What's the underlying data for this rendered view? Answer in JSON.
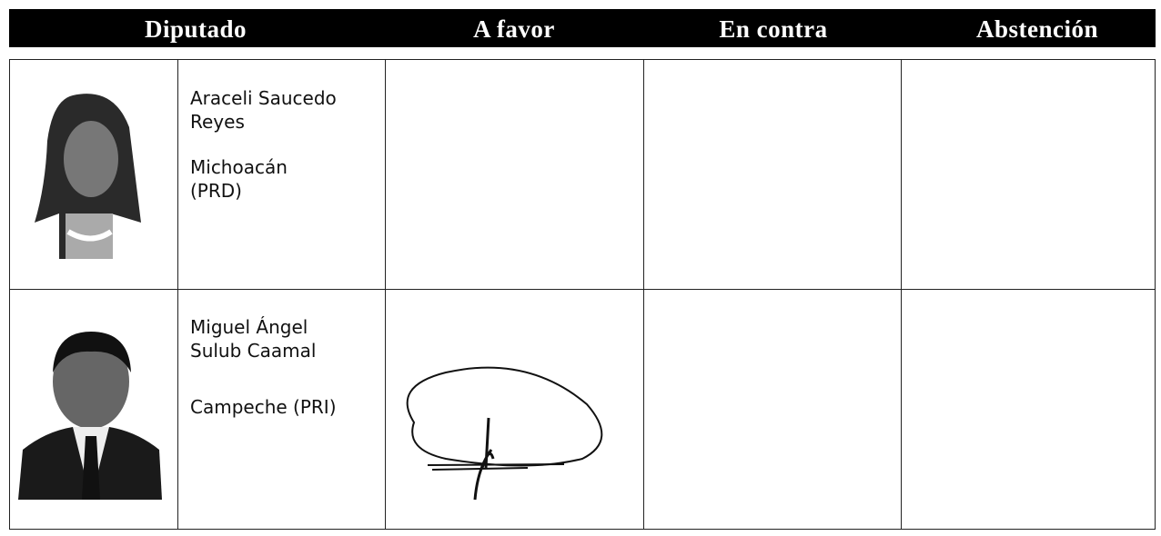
{
  "header": {
    "columns": [
      "Diputado",
      "A favor",
      "En contra",
      "Abstención"
    ]
  },
  "rows": [
    {
      "name_lines": [
        "Araceli Saucedo",
        "Reyes"
      ],
      "location_lines": [
        "Michoacán",
        "(PRD)"
      ]
    },
    {
      "name_lines": [
        "Miguel Ángel",
        "Sulub Caamal"
      ],
      "location_lines": [
        "Campeche (PRI)"
      ]
    }
  ]
}
